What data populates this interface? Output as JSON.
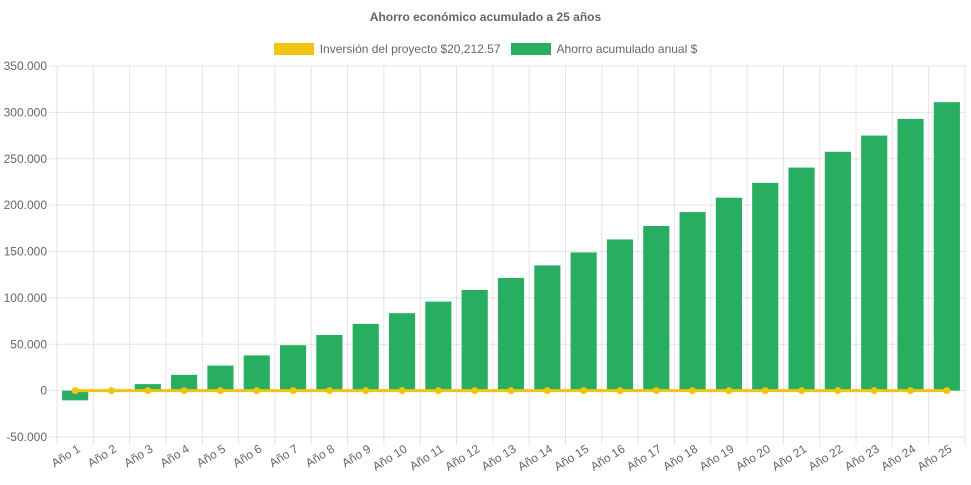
{
  "chart_data": {
    "type": "bar",
    "title": "Ahorro económico acumulado a 25 años",
    "categories": [
      "Año 1",
      "Año 2",
      "Año 3",
      "Año 4",
      "Año 5",
      "Año 6",
      "Año 7",
      "Año 8",
      "Año 9",
      "Año 10",
      "Año 11",
      "Año 12",
      "Año 13",
      "Año 14",
      "Año 15",
      "Año 16",
      "Año 17",
      "Año 18",
      "Año 19",
      "Año 20",
      "Año 21",
      "Año 22",
      "Año 23",
      "Año 24",
      "Año 25"
    ],
    "series": [
      {
        "name": "Inversión del proyecto $20,212.57",
        "type": "line",
        "color": "#f1c40f",
        "values": [
          0,
          0,
          0,
          0,
          0,
          0,
          0,
          0,
          0,
          0,
          0,
          0,
          0,
          0,
          0,
          0,
          0,
          0,
          0,
          0,
          0,
          0,
          0,
          0,
          0
        ]
      },
      {
        "name": "Ahorro acumulado anual $",
        "type": "bar",
        "color": "#27ae60",
        "values": [
          -10500,
          -500,
          7000,
          17000,
          27000,
          38000,
          49000,
          60000,
          72000,
          83500,
          96000,
          108500,
          121500,
          135000,
          149000,
          163000,
          177500,
          192500,
          208000,
          224000,
          240500,
          257500,
          275000,
          293000,
          311000
        ]
      }
    ],
    "ylim": [
      -50000,
      350000
    ],
    "yticks": [
      {
        "value": 350000,
        "label": "350.000"
      },
      {
        "value": 300000,
        "label": "300.000"
      },
      {
        "value": 250000,
        "label": "250.000"
      },
      {
        "value": 200000,
        "label": "200.000"
      },
      {
        "value": 150000,
        "label": "150.000"
      },
      {
        "value": 100000,
        "label": "100.000"
      },
      {
        "value": 50000,
        "label": "50.000"
      },
      {
        "value": 0,
        "label": "0"
      },
      {
        "value": -50000,
        "label": "-50.000"
      }
    ],
    "grid": true,
    "legend_position": "top"
  }
}
